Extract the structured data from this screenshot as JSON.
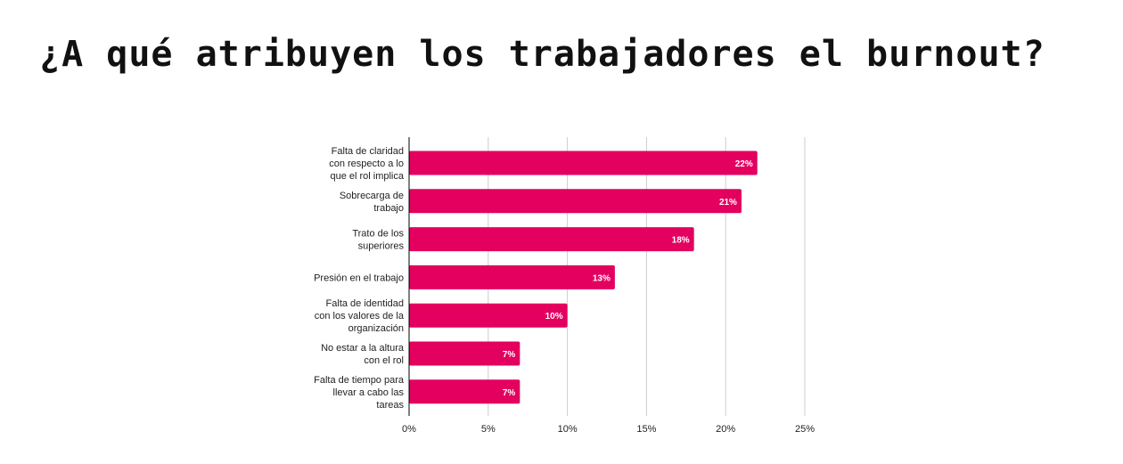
{
  "title": "¿A qué atribuyen los trabajadores el burnout?",
  "colors": {
    "bar": "#E3005F",
    "grid": "#CCCCCC",
    "axis": "#000000",
    "text": "#222222"
  },
  "chart_data": {
    "type": "bar",
    "orientation": "horizontal",
    "title": "¿A qué atribuyen los trabajadores el burnout?",
    "xlabel": "",
    "ylabel": "",
    "xlim": [
      0,
      25
    ],
    "x_ticks": [
      0,
      5,
      10,
      15,
      20,
      25
    ],
    "x_tick_labels": [
      "0%",
      "5%",
      "10%",
      "15%",
      "20%",
      "25%"
    ],
    "grid": "vertical",
    "legend": "none",
    "categories": [
      [
        "Falta de claridad",
        "con respecto a lo",
        "que el rol implica"
      ],
      [
        "Sobrecarga de",
        "trabajo"
      ],
      [
        "Trato de los",
        "superiores"
      ],
      [
        "Presión en el trabajo"
      ],
      [
        "Falta de identidad",
        "con los valores de la",
        "organización"
      ],
      [
        "No estar a la altura",
        "con el rol"
      ],
      [
        "Falta de tiempo para",
        "llevar a cabo las",
        "tareas"
      ]
    ],
    "values": [
      22,
      21,
      18,
      13,
      10,
      7,
      7
    ],
    "data_labels": [
      "22%",
      "21%",
      "18%",
      "13%",
      "10%",
      "7%",
      "7%"
    ]
  }
}
